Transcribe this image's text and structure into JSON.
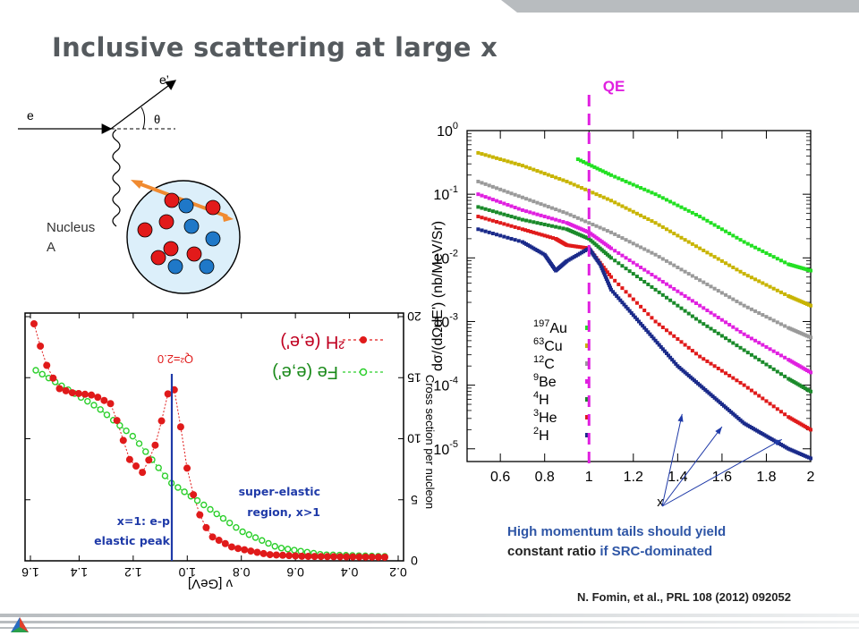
{
  "slide": {
    "title": "Inclusive scattering at large x",
    "citation": "N. Fomin, et al., PRL 108 (2012) 092052",
    "tails_line1": "High momentum tails should yield",
    "tails_line2a": "constant ratio",
    "tails_line2b": " if SRC-dominated"
  },
  "diagram": {
    "incoming_label": "e",
    "outgoing_label": "e’",
    "angle_label": "θ",
    "nucleus_label_1": "Nucleus",
    "nucleus_label_2": "A"
  },
  "left_plot": {
    "note": "mirrored (flipped) figure",
    "legend_1": "²H  (e,e')",
    "legend_2": "Fe  (e,e')",
    "peak_label": "Q²=2.0",
    "xlabel": "ν  [GeV]",
    "ylabel": "Cross section per nucleon",
    "x_ticks": [
      "1.6",
      "1.4",
      "1.2",
      "1.0",
      "0.8",
      "0.6",
      "0.4",
      "0.2"
    ],
    "y_ticks": [
      "20",
      "15",
      "10",
      "5",
      "0"
    ],
    "label_super_1": "super-elastic",
    "label_super_2": "region, x>1",
    "label_elastic_1": "x=1: e-p",
    "label_elastic_2": "elastic peak"
  },
  "chart_data": {
    "type": "scatter",
    "qe_label": "QE",
    "xlabel": "x",
    "ylabel": "dσ/(dΩdE') (nb/MeV/Sr)",
    "x_ticks": [
      "0.6",
      "0.8",
      "1",
      "1.2",
      "1.4",
      "1.6",
      "1.8",
      "2"
    ],
    "y_ticks": [
      "10^0",
      "10^-1",
      "10^-2",
      "10^-3",
      "10^-4",
      "10^-5"
    ],
    "xlim": [
      0.45,
      2.0
    ],
    "ylim_log10": [
      -5.2,
      0.0
    ],
    "log_y": true,
    "series": [
      {
        "name": "197Au",
        "sup": "197",
        "el": "Au",
        "color": "#22e022",
        "x": [
          0.95,
          1.1,
          1.3,
          1.5,
          1.7,
          1.9,
          2.0
        ],
        "log10y": [
          -0.45,
          -0.7,
          -1.0,
          -1.35,
          -1.75,
          -2.1,
          -2.2
        ]
      },
      {
        "name": "63Cu",
        "sup": "63",
        "el": "Cu",
        "color": "#c8b400",
        "x": [
          0.5,
          0.7,
          0.9,
          1.1,
          1.3,
          1.5,
          1.7,
          1.9,
          2.0
        ],
        "log10y": [
          -0.35,
          -0.55,
          -0.8,
          -1.1,
          -1.45,
          -1.85,
          -2.25,
          -2.6,
          -2.75
        ]
      },
      {
        "name": "12C",
        "sup": "12",
        "el": "C",
        "color": "#9a9a9a",
        "x": [
          0.5,
          0.7,
          0.9,
          1.1,
          1.3,
          1.5,
          1.7,
          1.9,
          2.0
        ],
        "log10y": [
          -0.8,
          -1.05,
          -1.3,
          -1.6,
          -1.95,
          -2.35,
          -2.75,
          -3.1,
          -3.25
        ]
      },
      {
        "name": "9Be",
        "sup": "9",
        "el": "Be",
        "color": "#e020e0",
        "x": [
          0.5,
          0.7,
          0.9,
          1.0,
          1.1,
          1.3,
          1.5,
          1.7,
          1.9,
          2.0
        ],
        "log10y": [
          -1.0,
          -1.25,
          -1.45,
          -1.6,
          -1.85,
          -2.3,
          -2.75,
          -3.2,
          -3.6,
          -3.8
        ]
      },
      {
        "name": "4H",
        "sup": "4",
        "el": "H",
        "color": "#1a8a2a",
        "x": [
          0.5,
          0.7,
          0.9,
          1.0,
          1.1,
          1.3,
          1.5,
          1.7,
          1.9,
          2.0
        ],
        "log10y": [
          -1.2,
          -1.4,
          -1.55,
          -1.7,
          -2.0,
          -2.5,
          -3.0,
          -3.45,
          -3.9,
          -4.1
        ]
      },
      {
        "name": "3He",
        "sup": "3",
        "el": "He",
        "color": "#e01a1a",
        "x": [
          0.5,
          0.7,
          0.85,
          0.9,
          1.0,
          1.1,
          1.3,
          1.5,
          1.7,
          1.9,
          2.0
        ],
        "log10y": [
          -1.35,
          -1.55,
          -1.7,
          -1.8,
          -1.85,
          -2.3,
          -3.0,
          -3.55,
          -4.0,
          -4.5,
          -4.7
        ]
      },
      {
        "name": "2H",
        "sup": "2",
        "el": "H",
        "color": "#1a2a8a",
        "x": [
          0.5,
          0.7,
          0.8,
          0.85,
          0.9,
          1.0,
          1.05,
          1.1,
          1.2,
          1.3,
          1.4,
          1.5,
          1.6,
          1.7,
          1.8,
          1.9,
          2.0
        ],
        "log10y": [
          -1.55,
          -1.75,
          -1.95,
          -2.2,
          -2.05,
          -1.85,
          -2.1,
          -2.5,
          -2.9,
          -3.3,
          -3.7,
          -4.0,
          -4.3,
          -4.6,
          -4.8,
          -5.0,
          -5.15
        ]
      }
    ]
  }
}
